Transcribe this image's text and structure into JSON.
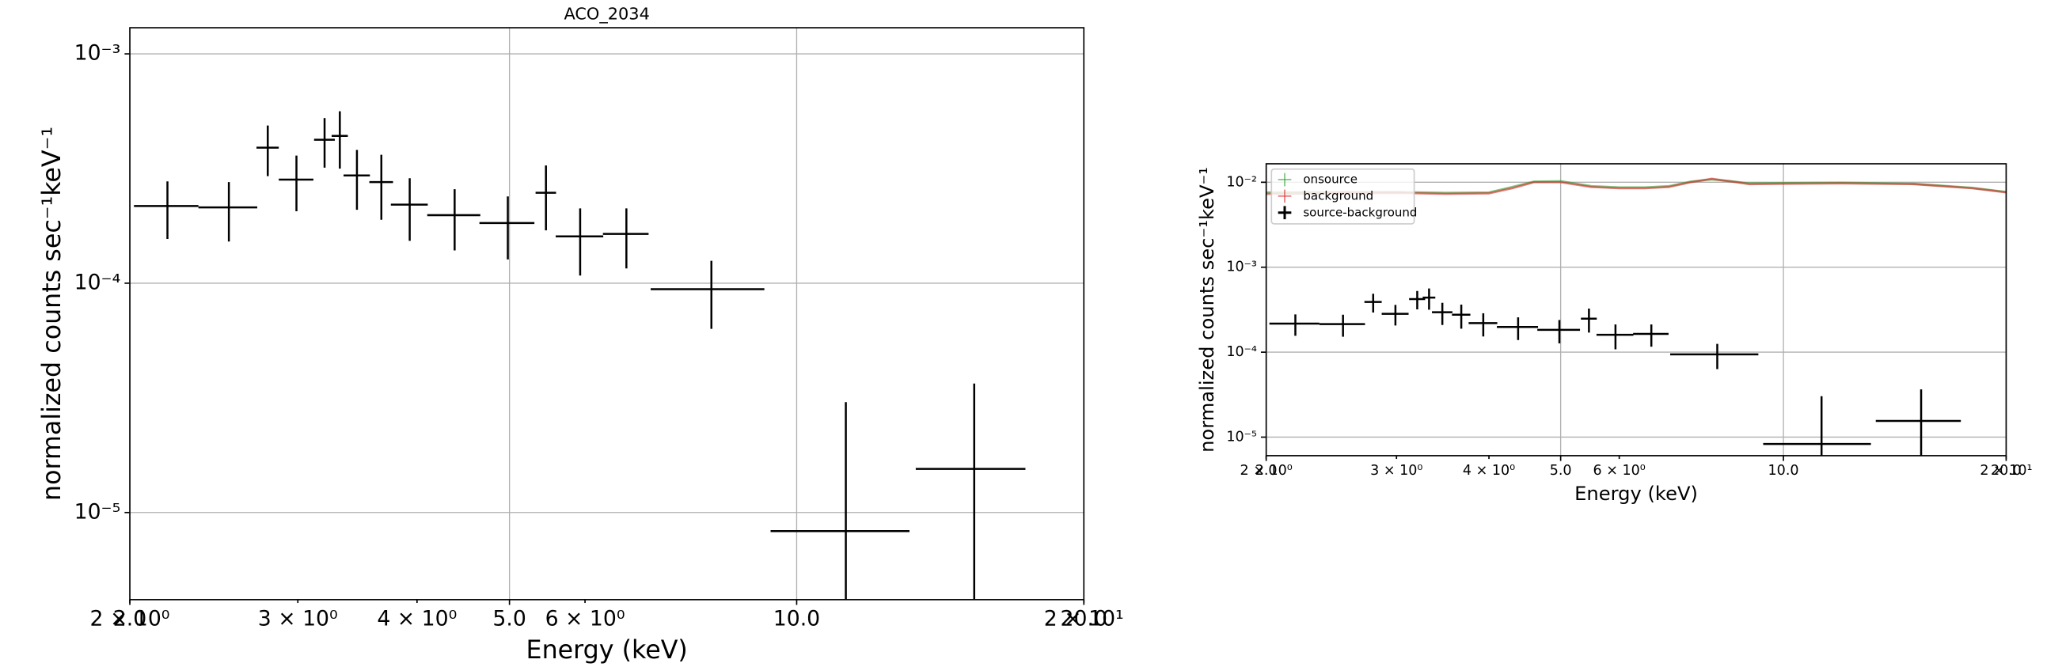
{
  "chart_data": [
    {
      "type": "errorbar",
      "title": "ACO_2034",
      "xlabel": "Energy (keV)",
      "ylabel": "normalized counts sec⁻¹keV⁻¹",
      "xlog": true,
      "ylog": true,
      "grid": true,
      "legend": false,
      "xlim": [
        2.0,
        20.0
      ],
      "ylim": [
        4.17e-06,
        0.0013
      ],
      "xticks": [
        {
          "value": 2.0,
          "label": "2.0"
        },
        {
          "value": 5.0,
          "label": "5.0"
        },
        {
          "value": 10.0,
          "label": "10.0"
        },
        {
          "value": 20.0,
          "label": "20.0"
        }
      ],
      "xticks_minor": [
        {
          "value": 2,
          "label": "2 × 10⁰"
        },
        {
          "value": 3,
          "label": "3 × 10⁰"
        },
        {
          "value": 4,
          "label": "4 × 10⁰"
        },
        {
          "value": 6,
          "label": "6 × 10⁰"
        },
        {
          "value": 20,
          "label": "2 × 10¹"
        }
      ],
      "yticks": [
        {
          "value": 1e-05,
          "label": "10⁻⁵"
        },
        {
          "value": 0.0001,
          "label": "10⁻⁴"
        },
        {
          "value": 0.001,
          "label": "10⁻³"
        }
      ],
      "series": [
        {
          "color": "#000000",
          "x": [
            2.19,
            2.54,
            2.79,
            2.99,
            3.2,
            3.32,
            3.46,
            3.67,
            3.93,
            4.38,
            4.98,
            5.46,
            5.93,
            6.63,
            8.14,
            11.26,
            15.35
          ],
          "xerr": [
            0.17,
            0.18,
            0.075,
            0.125,
            0.08,
            0.065,
            0.11,
            0.105,
            0.175,
            0.28,
            0.33,
            0.135,
            0.34,
            0.365,
            1.11,
            1.87,
            2.02
          ],
          "values": [
            0.000217,
            0.000214,
            0.00039,
            0.000283,
            0.000422,
            0.000439,
            0.000295,
            0.000276,
            0.00022,
            0.000198,
            0.000183,
            0.000248,
            0.00016,
            0.000164,
            9.42e-05,
            8.3e-06,
            1.55e-05
          ],
          "yerr": [
            6.1e-05,
            6.2e-05,
            9.7e-05,
            7.7e-05,
            0.000103,
            0.000123,
            8.6e-05,
            8.7e-05,
            6.7e-05,
            5.9e-05,
            5.6e-05,
            7.8e-05,
            5.2e-05,
            4.8e-05,
            3.1e-05,
            2.2e-05,
            2.1e-05
          ]
        }
      ]
    },
    {
      "type": "errorbar",
      "xlabel": "Energy (keV)",
      "ylabel": "normalized counts sec⁻¹keV⁻¹",
      "xlog": true,
      "ylog": true,
      "grid": true,
      "legend": "upper left",
      "xlim": [
        2.0,
        20.0
      ],
      "ylim": [
        6.05e-06,
        0.0165
      ],
      "xticks": [
        {
          "value": 2.0,
          "label": "2.0"
        },
        {
          "value": 5.0,
          "label": "5.0"
        },
        {
          "value": 10.0,
          "label": "10.0"
        },
        {
          "value": 20.0,
          "label": "20.0"
        }
      ],
      "xticks_minor": [
        {
          "value": 2,
          "label": "2 × 10⁰"
        },
        {
          "value": 3,
          "label": "3 × 10⁰"
        },
        {
          "value": 4,
          "label": "4 × 10⁰"
        },
        {
          "value": 6,
          "label": "6 × 10⁰"
        },
        {
          "value": 20,
          "label": "2 × 10¹"
        }
      ],
      "yticks": [
        {
          "value": 1e-05,
          "label": "10⁻⁵"
        },
        {
          "value": 0.0001,
          "label": "10⁻⁴"
        },
        {
          "value": 0.001,
          "label": "10⁻³"
        },
        {
          "value": 0.01,
          "label": "10⁻²"
        }
      ],
      "series": [
        {
          "name": "onsource",
          "color": "#2ca02c",
          "x": [
            2.0,
            2.5,
            3.0,
            3.5,
            4.0,
            4.3,
            4.6,
            5.0,
            5.5,
            6.0,
            6.5,
            7.0,
            7.5,
            8.0,
            8.5,
            9.0,
            10.0,
            12.0,
            15.0,
            18.0,
            20.0
          ],
          "values": [
            0.0076,
            0.0077,
            0.0077,
            0.0075,
            0.0076,
            0.0088,
            0.0102,
            0.0103,
            0.009,
            0.0087,
            0.0087,
            0.009,
            0.0102,
            0.0108,
            0.0103,
            0.0097,
            0.0098,
            0.0099,
            0.0096,
            0.0086,
            0.0077
          ]
        },
        {
          "name": "background",
          "color": "#d62728",
          "x": [
            2.0,
            2.5,
            3.0,
            3.5,
            4.0,
            4.3,
            4.6,
            5.0,
            5.5,
            6.0,
            6.5,
            7.0,
            7.5,
            8.0,
            8.5,
            9.0,
            10.0,
            12.0,
            15.0,
            18.0,
            20.0
          ],
          "values": [
            0.0073,
            0.0074,
            0.0075,
            0.0073,
            0.0074,
            0.0085,
            0.01,
            0.01,
            0.0088,
            0.0085,
            0.0085,
            0.0088,
            0.01,
            0.011,
            0.0102,
            0.0095,
            0.0096,
            0.0097,
            0.0095,
            0.0085,
            0.0076
          ]
        },
        {
          "name": "source-background",
          "color": "#000000",
          "x": [
            2.19,
            2.54,
            2.79,
            2.99,
            3.2,
            3.32,
            3.46,
            3.67,
            3.93,
            4.38,
            4.98,
            5.46,
            5.93,
            6.63,
            8.14,
            11.26,
            15.35
          ],
          "xerr": [
            0.17,
            0.18,
            0.075,
            0.125,
            0.08,
            0.065,
            0.11,
            0.105,
            0.175,
            0.28,
            0.33,
            0.135,
            0.34,
            0.365,
            1.11,
            1.87,
            2.02
          ],
          "values": [
            0.000217,
            0.000214,
            0.00039,
            0.000283,
            0.000422,
            0.000439,
            0.000295,
            0.000276,
            0.00022,
            0.000198,
            0.000183,
            0.000248,
            0.00016,
            0.000164,
            9.42e-05,
            8.3e-06,
            1.55e-05
          ],
          "yerr": [
            6.1e-05,
            6.2e-05,
            9.7e-05,
            7.7e-05,
            0.000103,
            0.000123,
            8.6e-05,
            8.7e-05,
            6.7e-05,
            5.9e-05,
            5.6e-05,
            7.8e-05,
            5.2e-05,
            4.8e-05,
            3.1e-05,
            2.2e-05,
            2.1e-05
          ]
        }
      ]
    }
  ]
}
